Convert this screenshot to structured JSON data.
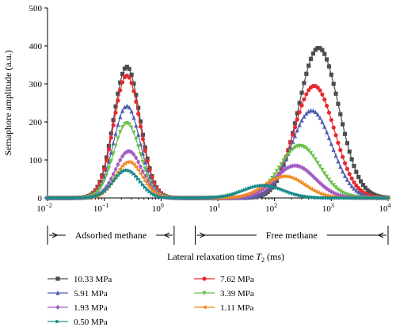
{
  "chart_data": {
    "type": "line",
    "title": "",
    "xlabel": "Lateral relaxation time",
    "xlabel_symbol": "T",
    "xlabel_subscript": "2",
    "xlabel_unit": "(ms)",
    "ylabel": "Semaphore amplitude (a.u.)",
    "x_scale": "log",
    "xlim": [
      0.01,
      10000
    ],
    "ylim": [
      0,
      500
    ],
    "x_ticks": [
      {
        "base": "10",
        "exp": "−2"
      },
      {
        "base": "10",
        "exp": "−1"
      },
      {
        "base": "10",
        "exp": "0"
      },
      {
        "base": "10",
        "exp": "1"
      },
      {
        "base": "10",
        "exp": "2"
      },
      {
        "base": "10",
        "exp": "3"
      },
      {
        "base": "10",
        "exp": "4"
      }
    ],
    "y_ticks": [
      "0",
      "100",
      "200",
      "300",
      "400",
      "500"
    ],
    "grid": false,
    "legend_position": "bottom",
    "regions": [
      {
        "label": "Adsorbed methane",
        "x_range": [
          0.01,
          1.7
        ]
      },
      {
        "label": "Free methane",
        "x_range": [
          4,
          10000
        ]
      }
    ],
    "series": [
      {
        "name": "10.33 MPa",
        "color": "#4d4d4d",
        "marker": "square",
        "peak1": {
          "x": 0.25,
          "y": 345
        },
        "peak2": {
          "x": 600,
          "y": 395
        }
      },
      {
        "name": "7.62 MPa",
        "color": "#e8292f",
        "marker": "circle",
        "peak1": {
          "x": 0.25,
          "y": 322
        },
        "peak2": {
          "x": 500,
          "y": 295
        }
      },
      {
        "name": "5.91 MPa",
        "color": "#5060b0",
        "marker": "triangle-up",
        "peak1": {
          "x": 0.25,
          "y": 242
        },
        "peak2": {
          "x": 450,
          "y": 230
        }
      },
      {
        "name": "3.39 MPa",
        "color": "#6cc04a",
        "marker": "triangle-down",
        "peak1": {
          "x": 0.25,
          "y": 197
        },
        "peak2": {
          "x": 280,
          "y": 137
        }
      },
      {
        "name": "1.93 MPa",
        "color": "#a45cc4",
        "marker": "diamond",
        "peak1": {
          "x": 0.27,
          "y": 123
        },
        "peak2": {
          "x": 230,
          "y": 85
        }
      },
      {
        "name": "1.11 MPa",
        "color": "#f08a24",
        "marker": "triangle-left",
        "peak1": {
          "x": 0.27,
          "y": 95
        },
        "peak2": {
          "x": 150,
          "y": 57
        }
      },
      {
        "name": "0.50 MPa",
        "color": "#1a8a8a",
        "marker": "triangle-right",
        "peak1": {
          "x": 0.25,
          "y": 73
        },
        "peak2": {
          "x": 65,
          "y": 33
        }
      }
    ],
    "peak_widths": {
      "adsorbed": 0.33,
      "free": 0.5
    }
  }
}
